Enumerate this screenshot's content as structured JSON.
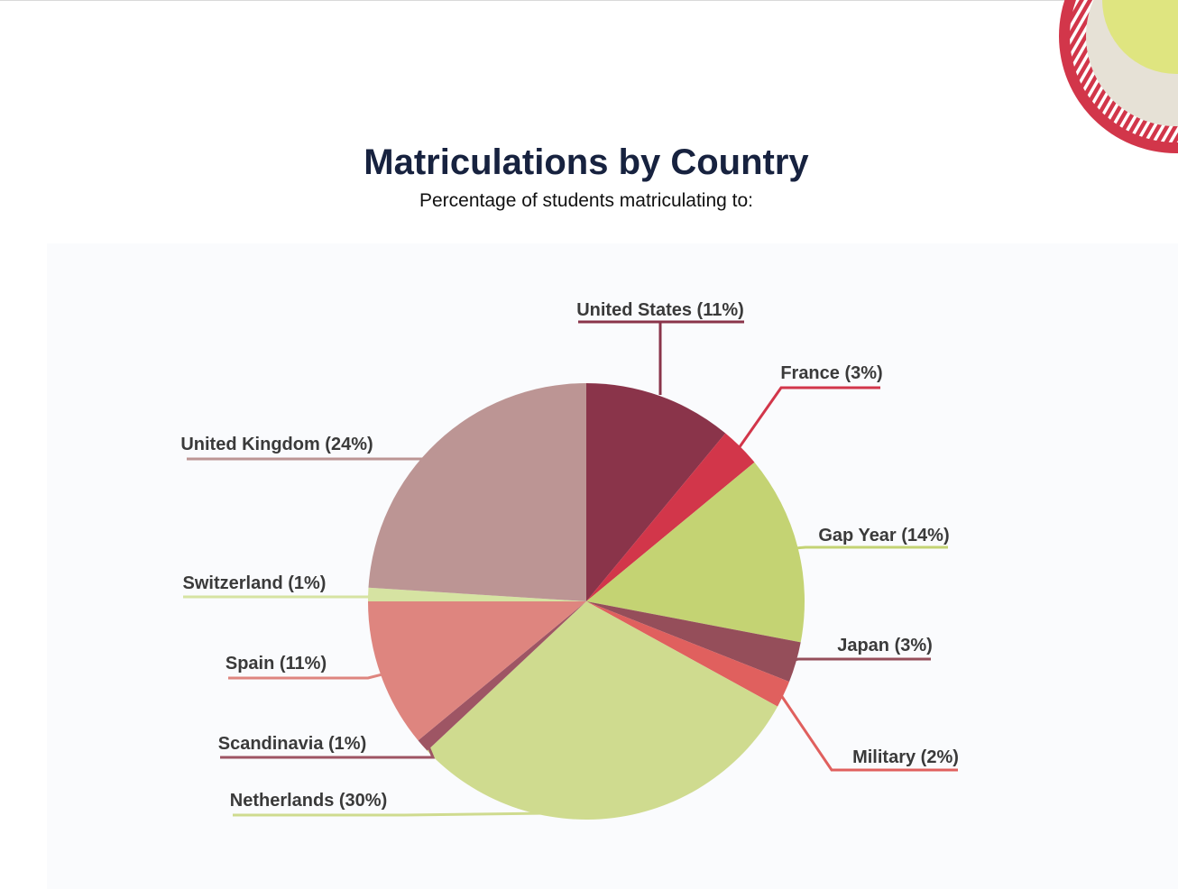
{
  "colors": {
    "title": "#17223f",
    "label_text": "#3a3a3a"
  },
  "header": {
    "title": "Matriculations by Country",
    "subtitle": "Percentage of students matriculating to:"
  },
  "chart_data": {
    "type": "pie",
    "title": "Matriculations by Country",
    "subtitle": "Percentage of students matriculating to:",
    "start_angle": "12 o'clock, clockwise",
    "slices": [
      {
        "label": "United States (11%)",
        "category": "United States",
        "value": 11,
        "color": "#8a344a"
      },
      {
        "label": "France (3%)",
        "category": "France",
        "value": 3,
        "color": "#d2364a"
      },
      {
        "label": "Gap Year (14%)",
        "category": "Gap Year",
        "value": 14,
        "color": "#c4d373"
      },
      {
        "label": "Japan (3%)",
        "category": "Japan",
        "value": 3,
        "color": "#954e5a"
      },
      {
        "label": "Military (2%)",
        "category": "Military",
        "value": 2,
        "color": "#e0605e"
      },
      {
        "label": "Netherlands (30%)",
        "category": "Netherlands",
        "value": 30,
        "color": "#cfdb8f"
      },
      {
        "label": "Scandinavia (1%)",
        "category": "Scandinavia",
        "value": 1,
        "color": "#9e5564"
      },
      {
        "label": "Spain (11%)",
        "category": "Spain",
        "value": 11,
        "color": "#de857f"
      },
      {
        "label": "Switzerland (1%)",
        "category": "Switzerland",
        "value": 1,
        "color": "#d6e3a2"
      },
      {
        "label": "United Kingdom (24%)",
        "category": "United Kingdom",
        "value": 24,
        "color": "#bc9594"
      }
    ]
  },
  "decoration": {
    "ring_colors": [
      "#d2364a",
      "#e6e1d6",
      "#dfe580"
    ]
  }
}
